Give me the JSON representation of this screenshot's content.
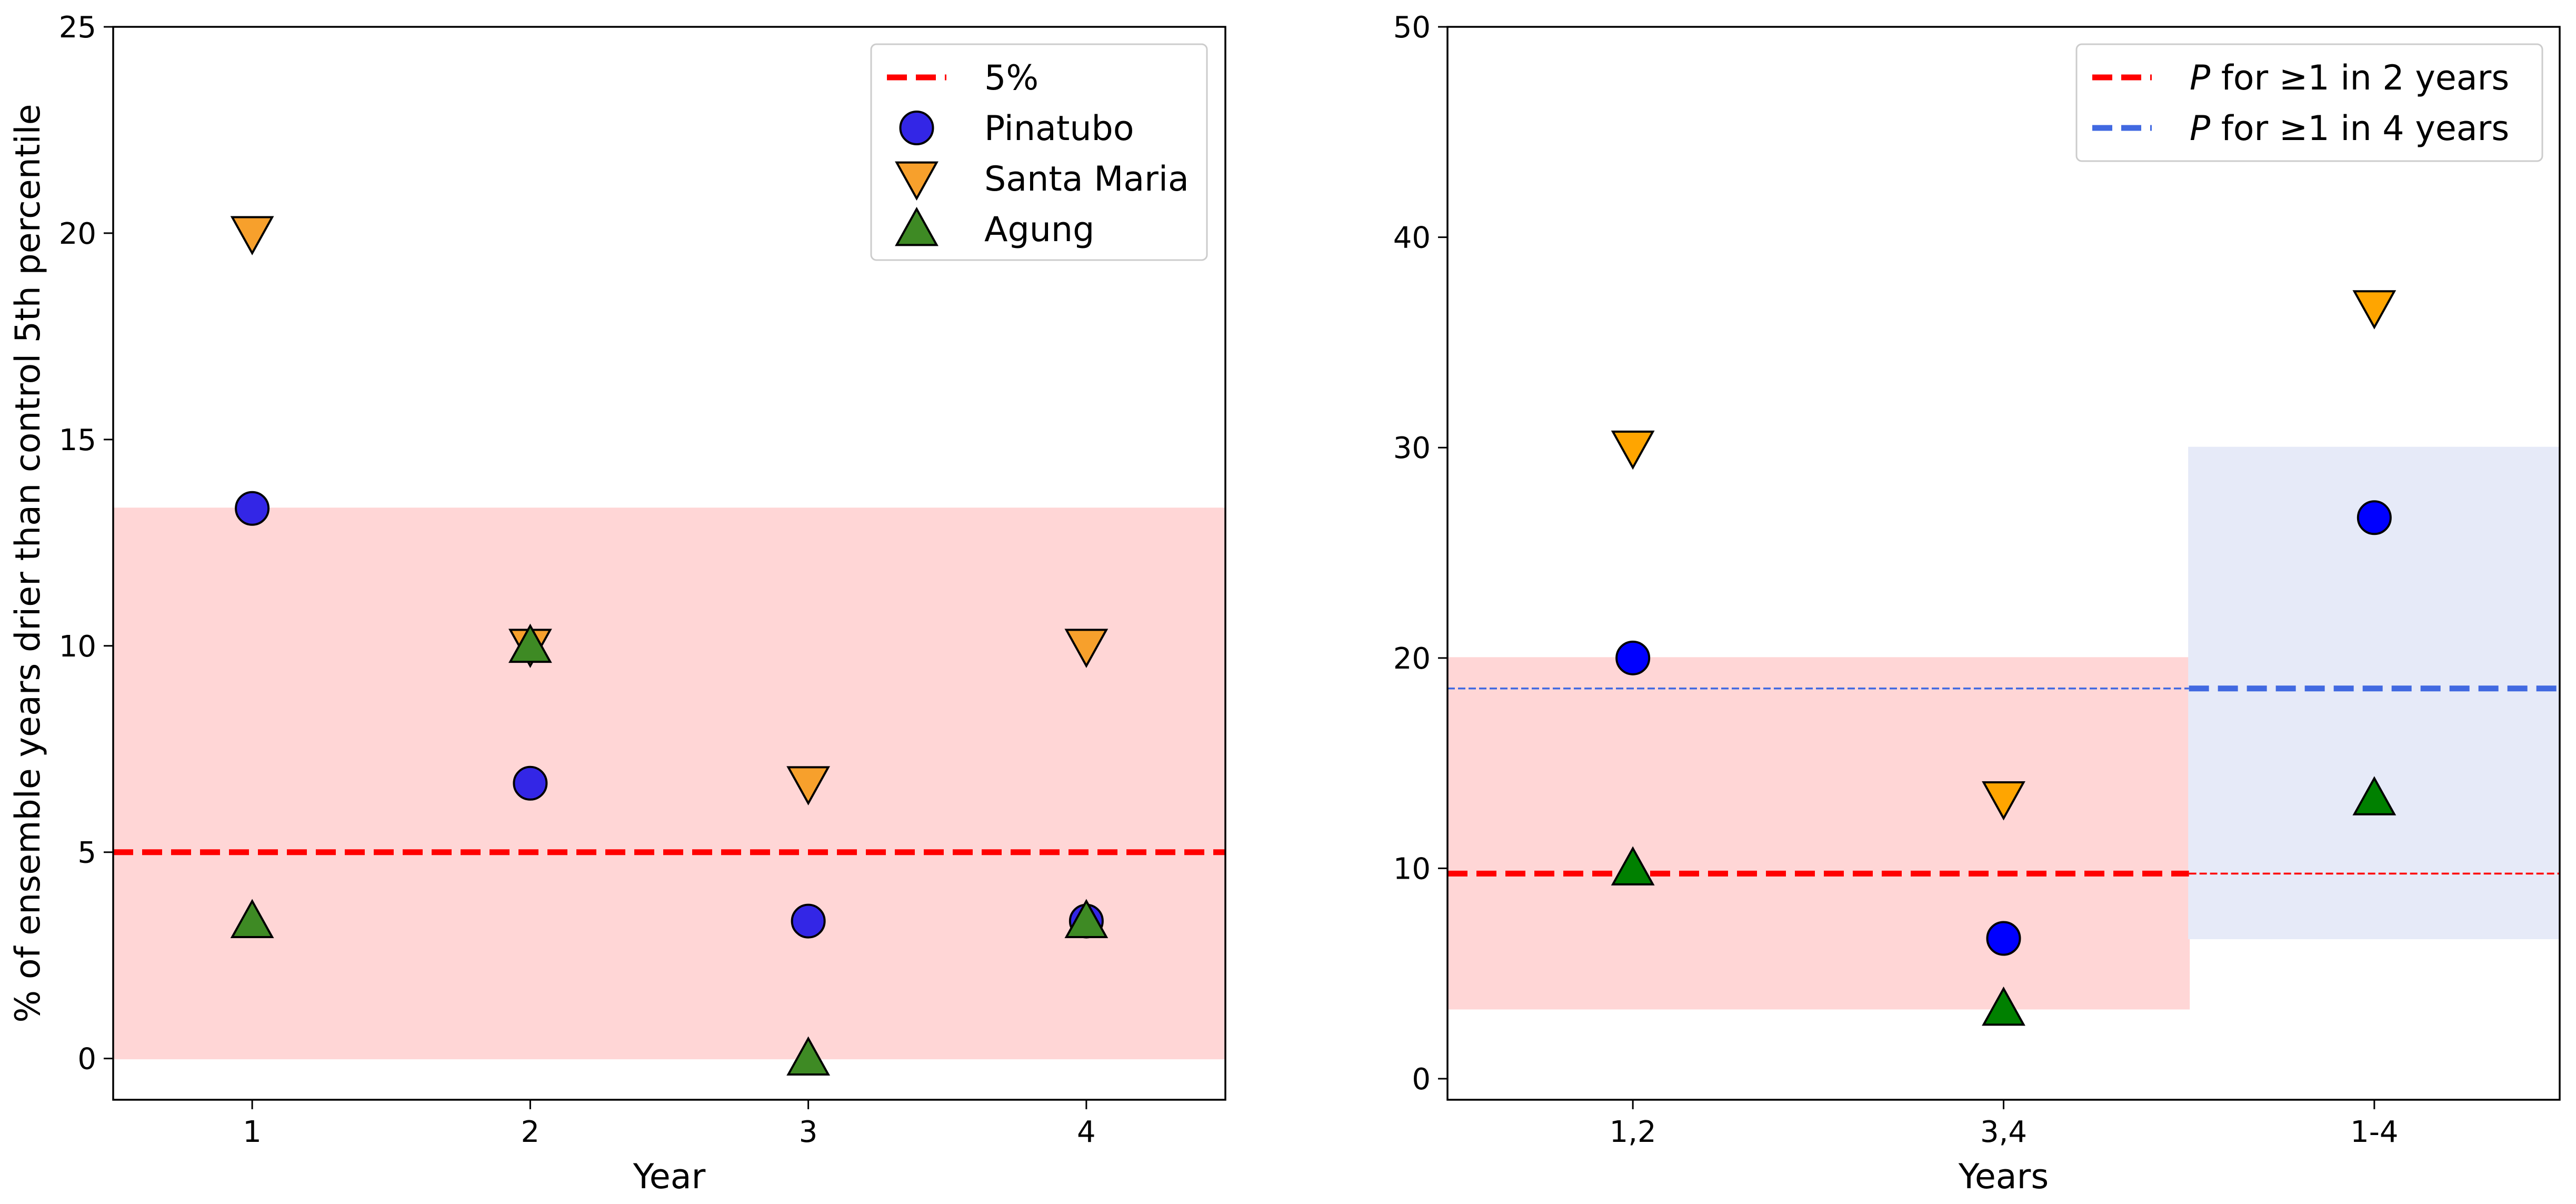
{
  "chart_data": [
    {
      "type": "scatter",
      "title": "",
      "xlabel": "Year",
      "ylabel": "% of ensemble years drier than control 5th percentile",
      "x_ticks": [
        "1",
        "2",
        "3",
        "4"
      ],
      "x": [
        1,
        2,
        3,
        4
      ],
      "xlim": [
        0.5,
        4.5
      ],
      "ylim": [
        -1,
        25
      ],
      "y_ticks": [
        "0",
        "5",
        "10",
        "15",
        "20",
        "25"
      ],
      "grid": false,
      "legend_position": "top-right",
      "series": [
        {
          "name": "Pinatubo",
          "marker": "circle",
          "color": "#3326e6",
          "values": [
            13.33,
            6.67,
            3.33,
            3.33
          ]
        },
        {
          "name": "Santa Maria",
          "marker": "triangle-down",
          "color": "#f7a02c",
          "values": [
            20.0,
            10.0,
            6.67,
            10.0
          ]
        },
        {
          "name": "Agung",
          "marker": "triangle-up",
          "color": "#3e8a24",
          "values": [
            3.33,
            10.0,
            0.0,
            3.33
          ]
        }
      ],
      "reference_lines": [
        {
          "name": "5%",
          "y": 5,
          "color": "#ff0000",
          "style": "dashed"
        }
      ],
      "shaded_bands": [
        {
          "x_from": 0.5,
          "x_to": 4.5,
          "y_from": 0.0,
          "y_to": 13.33,
          "color": "#ffd6d6"
        }
      ]
    },
    {
      "type": "scatter",
      "title": "",
      "xlabel": "Years",
      "ylabel": "",
      "x_ticks": [
        "1,2",
        "3,4",
        "1-4"
      ],
      "x": [
        1,
        2,
        3
      ],
      "xlim": [
        0.5,
        3.5
      ],
      "ylim": [
        -1,
        50
      ],
      "y_ticks": [
        "0",
        "10",
        "20",
        "30",
        "40",
        "50"
      ],
      "grid": false,
      "legend_position": "top-right",
      "series": [
        {
          "name": "Pinatubo",
          "marker": "circle",
          "color": "#0000ff",
          "values": [
            20.0,
            6.67,
            26.67
          ]
        },
        {
          "name": "Santa Maria",
          "marker": "triangle-down",
          "color": "#ffa500",
          "values": [
            30.0,
            13.33,
            36.67
          ]
        },
        {
          "name": "Agung",
          "marker": "triangle-up",
          "color": "#008000",
          "values": [
            10.0,
            3.33,
            13.33
          ]
        }
      ],
      "reference_lines": [
        {
          "name_prefix": "P",
          "name": " for ≥1 in 2 years",
          "y": 9.75,
          "color": "#ff0000",
          "style": "dashed"
        },
        {
          "name_prefix": "P",
          "name": " for ≥1 in 4 years",
          "y": 18.55,
          "color": "#4169e1",
          "style": "dashed"
        }
      ],
      "shaded_bands": [
        {
          "x_from": 0.5,
          "x_to": 2.5,
          "y_from": 3.33,
          "y_to": 20.0,
          "color": "#ffd6d6"
        },
        {
          "x_from": 2.5,
          "x_to": 3.5,
          "y_from": 6.67,
          "y_to": 30.0,
          "color": "#e6eaf8"
        }
      ]
    }
  ]
}
